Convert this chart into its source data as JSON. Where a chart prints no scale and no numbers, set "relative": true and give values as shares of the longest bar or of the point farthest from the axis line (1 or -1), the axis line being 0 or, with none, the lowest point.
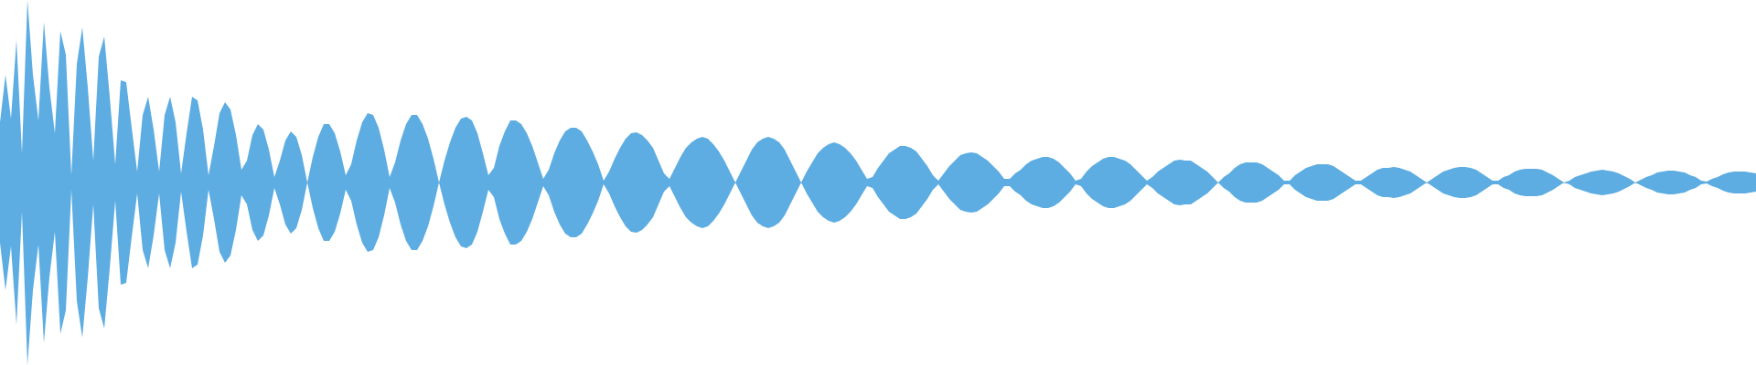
{
  "chart_data": {
    "type": "area",
    "relative": true,
    "categories": [
      null,
      null,
      null,
      null,
      null,
      null,
      null,
      null,
      null,
      null,
      null,
      null,
      null,
      null,
      null,
      null,
      null,
      null,
      null,
      null,
      null,
      null,
      null,
      null,
      null,
      null,
      null,
      null,
      null,
      null,
      null,
      null,
      null,
      null,
      null,
      null,
      null,
      null,
      null,
      null,
      null,
      null,
      null,
      null,
      null,
      null,
      null,
      null,
      null,
      null,
      null,
      null,
      null,
      null,
      null,
      null,
      null,
      null,
      null,
      null,
      null,
      null,
      null,
      null,
      null,
      null,
      null,
      null,
      null,
      null,
      null,
      null,
      null,
      null,
      null,
      null,
      null,
      null,
      null,
      null,
      null,
      null,
      null,
      null,
      null,
      null,
      null,
      null,
      null,
      null,
      null,
      null,
      null,
      null,
      null,
      null,
      null,
      null,
      null,
      null,
      null,
      null,
      null,
      null,
      null,
      null,
      null,
      null,
      null,
      null,
      null,
      null,
      null,
      null,
      null,
      null,
      null,
      null,
      null,
      null,
      null,
      null,
      null,
      null,
      null,
      null,
      null,
      null,
      null,
      null,
      null,
      null,
      null,
      null,
      null,
      null,
      null,
      null,
      null,
      null,
      null,
      null,
      null,
      null,
      null,
      null,
      null,
      null,
      null,
      null,
      null,
      null,
      null,
      null,
      null,
      null,
      null,
      null,
      null,
      null,
      null,
      null,
      null,
      null,
      null,
      null,
      null,
      null,
      null,
      null,
      null,
      null,
      null,
      null,
      null,
      null,
      null,
      null,
      null,
      null,
      null,
      null,
      null,
      null,
      null,
      null,
      null,
      null,
      null,
      null,
      null,
      null,
      null,
      null,
      null,
      null,
      null,
      null,
      null,
      null,
      null,
      null,
      null,
      null,
      null,
      null,
      null,
      null,
      null,
      null,
      null,
      null,
      null,
      null,
      null,
      null,
      null,
      null,
      null,
      null,
      null,
      null,
      null,
      null,
      null,
      null,
      null,
      null,
      null,
      null,
      null,
      null,
      null,
      null,
      null,
      null,
      null,
      null,
      null,
      null,
      null,
      null,
      null,
      null,
      null,
      null,
      null,
      null,
      null,
      null,
      null,
      null,
      null,
      null,
      null,
      null,
      null,
      null,
      null,
      null,
      null,
      null,
      null,
      null,
      null,
      null,
      null,
      null,
      null,
      null,
      null,
      null,
      null,
      null,
      null,
      null,
      null,
      null,
      null,
      null,
      null,
      null,
      null,
      null,
      null,
      null,
      null,
      null,
      null,
      null,
      null,
      null,
      null,
      null,
      null,
      null,
      null,
      null,
      null,
      null,
      null,
      null,
      null,
      null,
      null,
      null,
      null,
      null,
      null,
      null,
      null,
      null,
      null,
      null,
      null,
      null,
      null,
      null,
      null,
      null,
      null
    ],
    "series": [
      {
        "color": "#5dade2",
        "values": [
          0.33,
          0.59,
          0.35,
          0.78,
          0.16,
          1,
          0.59,
          0.34,
          0.88,
          0.52,
          0.27,
          0.83,
          0.7,
          0.04,
          0.65,
          0.85,
          0.52,
          0.12,
          0.69,
          0.8,
          0.47,
          0.1,
          0.56,
          0.55,
          0.3,
          0.06,
          0.37,
          0.47,
          0.29,
          0.06,
          0.37,
          0.47,
          0.33,
          0.05,
          0.27,
          0.47,
          0.45,
          0.29,
          0.04,
          0.2,
          0.38,
          0.44,
          0.4,
          0.26,
          0.07,
          0.12,
          0.26,
          0.32,
          0.29,
          0.18,
          0.03,
          0.12,
          0.23,
          0.28,
          0.25,
          0.15,
          0,
          0.14,
          0.25,
          0.32,
          0.32,
          0.27,
          0.17,
          0.04,
          0.1,
          0.23,
          0.33,
          0.38,
          0.37,
          0.3,
          0.18,
          0.03,
          0.11,
          0.23,
          0.32,
          0.37,
          0.37,
          0.32,
          0.24,
          0.13,
          0,
          0.12,
          0.22,
          0.3,
          0.35,
          0.36,
          0.34,
          0.27,
          0.16,
          0.04,
          0.08,
          0.2,
          0.28,
          0.34,
          0.34,
          0.32,
          0.27,
          0.2,
          0.11,
          0.02,
          0.07,
          0.16,
          0.23,
          0.28,
          0.3,
          0.3,
          0.28,
          0.23,
          0.17,
          0.1,
          0.01,
          0.06,
          0.13,
          0.19,
          0.24,
          0.27,
          0.275,
          0.26,
          0.23,
          0.19,
          0.12,
          0.05,
          0.02,
          0.08,
          0.14,
          0.19,
          0.22,
          0.24,
          0.25,
          0.24,
          0.21,
          0.17,
          0.12,
          0.06,
          0,
          0.06,
          0.12,
          0.18,
          0.22,
          0.24,
          0.25,
          0.24,
          0.22,
          0.18,
          0.12,
          0.06,
          0,
          0.06,
          0.11,
          0.16,
          0.19,
          0.21,
          0.22,
          0.21,
          0.19,
          0.16,
          0.12,
          0.07,
          0.02,
          0.03,
          0.08,
          0.12,
          0.16,
          0.18,
          0.2,
          0.2,
          0.19,
          0.17,
          0.13,
          0.09,
          0.04,
          0.01,
          0.05,
          0.09,
          0.12,
          0.15,
          0.16,
          0.165,
          0.16,
          0.14,
          0.12,
          0.09,
          0.06,
          0.02,
          0.02,
          0.05,
          0.07,
          0.1,
          0.12,
          0.13,
          0.14,
          0.14,
          0.13,
          0.11,
          0.08,
          0.05,
          0.01,
          0.02,
          0.06,
          0.09,
          0.11,
          0.13,
          0.14,
          0.14,
          0.13,
          0.12,
          0.1,
          0.07,
          0.04,
          0.01,
          0.03,
          0.06,
          0.08,
          0.1,
          0.12,
          0.125,
          0.12,
          0.12,
          0.1,
          0.08,
          0.06,
          0.03,
          0,
          0.03,
          0.05,
          0.08,
          0.1,
          0.11,
          0.11,
          0.11,
          0.1,
          0.08,
          0.06,
          0.04,
          0.01,
          0.01,
          0.04,
          0.06,
          0.08,
          0.09,
          0.1,
          0.1,
          0.1,
          0.09,
          0.07,
          0.05,
          0.03,
          0.01,
          0.01,
          0.03,
          0.05,
          0.07,
          0.08,
          0.08,
          0.085,
          0.08,
          0.07,
          0.06,
          0.04,
          0.02,
          0,
          0.02,
          0.04,
          0.06,
          0.07,
          0.08,
          0.085,
          0.085,
          0.08,
          0.07,
          0.05,
          0.03,
          0.01,
          0.01,
          0.03,
          0.04,
          0.06,
          0.07,
          0.075,
          0.075,
          0.075,
          0.07,
          0.055,
          0.04,
          0.02,
          0,
          0.01,
          0.03,
          0.04,
          0.05,
          0.06,
          0.065,
          0.07,
          0.065,
          0.06,
          0.05,
          0.035,
          0.02,
          0,
          0.015,
          0.03,
          0.04,
          0.055,
          0.06,
          0.065,
          0.065,
          0.06,
          0.055,
          0.04,
          0.03,
          0.01,
          0.005,
          0.02,
          0.03,
          0.045,
          0.055,
          0.06,
          0.06,
          0.06,
          0.055,
          0.05
        ]
      },
      {
        "color": "#5dade2",
        "values": [
          -0.33,
          -0.59,
          -0.35,
          -0.78,
          -0.16,
          -1,
          -0.59,
          -0.34,
          -0.88,
          -0.52,
          -0.27,
          -0.83,
          -0.7,
          -0.04,
          -0.65,
          -0.85,
          -0.52,
          -0.12,
          -0.69,
          -0.8,
          -0.47,
          -0.1,
          -0.56,
          -0.55,
          -0.3,
          -0.06,
          -0.37,
          -0.47,
          -0.29,
          -0.06,
          -0.37,
          -0.47,
          -0.33,
          -0.05,
          -0.27,
          -0.47,
          -0.45,
          -0.29,
          -0.04,
          -0.2,
          -0.38,
          -0.44,
          -0.4,
          -0.26,
          -0.07,
          -0.12,
          -0.26,
          -0.32,
          -0.29,
          -0.18,
          -0.03,
          -0.12,
          -0.23,
          -0.28,
          -0.25,
          -0.15,
          0,
          -0.14,
          -0.25,
          -0.32,
          -0.32,
          -0.27,
          -0.17,
          -0.04,
          -0.1,
          -0.23,
          -0.33,
          -0.38,
          -0.37,
          -0.3,
          -0.18,
          -0.03,
          -0.11,
          -0.23,
          -0.32,
          -0.37,
          -0.37,
          -0.32,
          -0.24,
          -0.13,
          0,
          -0.12,
          -0.22,
          -0.3,
          -0.35,
          -0.36,
          -0.34,
          -0.27,
          -0.16,
          -0.04,
          -0.08,
          -0.2,
          -0.28,
          -0.34,
          -0.34,
          -0.32,
          -0.27,
          -0.2,
          -0.11,
          -0.02,
          -0.07,
          -0.16,
          -0.23,
          -0.28,
          -0.3,
          -0.3,
          -0.28,
          -0.23,
          -0.17,
          -0.1,
          -0.01,
          -0.06,
          -0.13,
          -0.19,
          -0.24,
          -0.27,
          -0.275,
          -0.26,
          -0.23,
          -0.19,
          -0.12,
          -0.05,
          -0.02,
          -0.08,
          -0.14,
          -0.19,
          -0.22,
          -0.24,
          -0.25,
          -0.24,
          -0.21,
          -0.17,
          -0.12,
          -0.06,
          0,
          -0.06,
          -0.12,
          -0.18,
          -0.22,
          -0.24,
          -0.25,
          -0.24,
          -0.22,
          -0.18,
          -0.12,
          -0.06,
          0,
          -0.06,
          -0.11,
          -0.16,
          -0.19,
          -0.21,
          -0.22,
          -0.21,
          -0.19,
          -0.16,
          -0.12,
          -0.07,
          -0.02,
          -0.03,
          -0.08,
          -0.12,
          -0.16,
          -0.18,
          -0.2,
          -0.2,
          -0.19,
          -0.17,
          -0.13,
          -0.09,
          -0.04,
          -0.01,
          -0.05,
          -0.09,
          -0.12,
          -0.15,
          -0.16,
          -0.165,
          -0.16,
          -0.14,
          -0.12,
          -0.09,
          -0.06,
          -0.02,
          -0.02,
          -0.05,
          -0.07,
          -0.1,
          -0.12,
          -0.13,
          -0.14,
          -0.14,
          -0.13,
          -0.11,
          -0.08,
          -0.05,
          -0.01,
          -0.02,
          -0.06,
          -0.09,
          -0.11,
          -0.13,
          -0.14,
          -0.14,
          -0.13,
          -0.12,
          -0.1,
          -0.07,
          -0.04,
          -0.01,
          -0.03,
          -0.06,
          -0.08,
          -0.1,
          -0.12,
          -0.125,
          -0.12,
          -0.12,
          -0.1,
          -0.08,
          -0.06,
          -0.03,
          0,
          -0.03,
          -0.05,
          -0.08,
          -0.1,
          -0.11,
          -0.11,
          -0.11,
          -0.1,
          -0.08,
          -0.06,
          -0.04,
          -0.01,
          -0.01,
          -0.04,
          -0.06,
          -0.08,
          -0.09,
          -0.1,
          -0.1,
          -0.1,
          -0.09,
          -0.07,
          -0.05,
          -0.03,
          -0.01,
          -0.01,
          -0.03,
          -0.05,
          -0.07,
          -0.08,
          -0.08,
          -0.085,
          -0.08,
          -0.07,
          -0.06,
          -0.04,
          -0.02,
          0,
          -0.02,
          -0.04,
          -0.06,
          -0.07,
          -0.08,
          -0.085,
          -0.085,
          -0.08,
          -0.07,
          -0.05,
          -0.03,
          -0.01,
          -0.01,
          -0.03,
          -0.04,
          -0.06,
          -0.07,
          -0.075,
          -0.075,
          -0.075,
          -0.07,
          -0.055,
          -0.04,
          -0.02,
          0,
          -0.01,
          -0.03,
          -0.04,
          -0.05,
          -0.06,
          -0.065,
          -0.07,
          -0.065,
          -0.06,
          -0.05,
          -0.035,
          -0.02,
          0,
          -0.015,
          -0.03,
          -0.04,
          -0.055,
          -0.06,
          -0.065,
          -0.065,
          -0.06,
          -0.055,
          -0.04,
          -0.03,
          -0.01,
          -0.005,
          -0.02,
          -0.03,
          -0.045,
          -0.055,
          -0.06,
          -0.06,
          -0.06,
          -0.055,
          -0.05
        ]
      }
    ]
  }
}
